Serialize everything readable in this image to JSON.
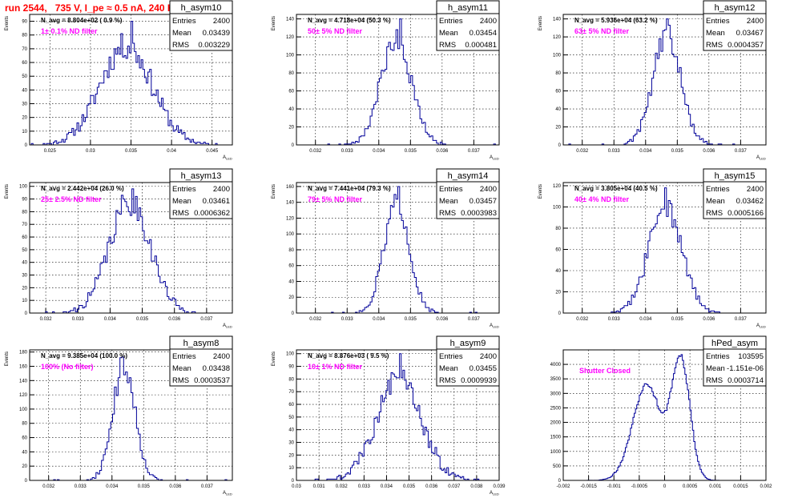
{
  "run_title": "run 2544,   735 V, I_pe ≈ 0.5 nA, 240 Hz",
  "stats_labels": {
    "entries": "Entries",
    "mean": "Mean",
    "rms": "RMS"
  },
  "chart_data": [
    {
      "type": "histogram",
      "name": "h_asym10",
      "navg": "N_avg = 8.804e+02 ( 0.9 %)",
      "annotation": "1± 0.1% ND filter",
      "annotation_color": "#ff00ff",
      "entries": "2400",
      "mean": "0.03439",
      "rms": "0.003229",
      "xlabel": "A_{LED}",
      "ylabel": "Events",
      "xlim": [
        0.0225,
        0.0475
      ],
      "ylim": [
        0,
        95
      ],
      "xticks": [
        "0.025",
        "0.03",
        "0.035",
        "0.04",
        "0.045"
      ],
      "xtick_values": [
        0.025,
        0.03,
        0.035,
        0.04,
        0.045
      ],
      "yticks": [
        "0",
        "10",
        "20",
        "30",
        "40",
        "50",
        "60",
        "70",
        "80",
        "90"
      ],
      "ytick_values": [
        0,
        10,
        20,
        30,
        40,
        50,
        60,
        70,
        80,
        90
      ],
      "dist": {
        "mu": 0.03439,
        "sigma": 0.003229,
        "peak": 72,
        "max": 90,
        "max_x": 0.0351,
        "bins": 120,
        "seed": 11
      }
    },
    {
      "type": "histogram",
      "name": "h_asym11",
      "navg": "N_avg = 4.718e+04 (50.3 %)",
      "annotation": "50± 5% ND filter",
      "annotation_color": "#ff00ff",
      "entries": "2400",
      "mean": "0.03454",
      "rms": "0.000481",
      "xlabel": "A_{LED}",
      "ylabel": "Events",
      "xlim": [
        0.0314,
        0.0378
      ],
      "ylim": [
        0,
        145
      ],
      "xticks": [
        "0.032",
        "0.033",
        "0.034",
        "0.035",
        "0.036",
        "0.037"
      ],
      "xtick_values": [
        0.032,
        0.033,
        0.034,
        0.035,
        0.036,
        0.037
      ],
      "yticks": [
        "0",
        "20",
        "40",
        "60",
        "80",
        "100",
        "120",
        "140"
      ],
      "ytick_values": [
        0,
        20,
        40,
        60,
        80,
        100,
        120,
        140
      ],
      "dist": {
        "mu": 0.03454,
        "sigma": 0.000481,
        "peak": 118,
        "max": 140,
        "max_x": 0.0347,
        "bins": 110,
        "seed": 21
      }
    },
    {
      "type": "histogram",
      "name": "h_asym12",
      "navg": "N_avg = 5.936e+04 (63.2 %)",
      "annotation": "63± 5% ND filter",
      "annotation_color": "#ff00ff",
      "entries": "2400",
      "mean": "0.03467",
      "rms": "0.0004357",
      "xlabel": "A_{LED}",
      "ylabel": "Events",
      "xlim": [
        0.0314,
        0.0378
      ],
      "ylim": [
        0,
        145
      ],
      "xticks": [
        "0.032",
        "0.033",
        "0.034",
        "0.035",
        "0.036",
        "0.037"
      ],
      "xtick_values": [
        0.032,
        0.033,
        0.034,
        0.035,
        0.036,
        0.037
      ],
      "yticks": [
        "0",
        "20",
        "40",
        "60",
        "80",
        "100",
        "120",
        "140"
      ],
      "ytick_values": [
        0,
        20,
        40,
        60,
        80,
        100,
        120,
        140
      ],
      "dist": {
        "mu": 0.03467,
        "sigma": 0.0004357,
        "peak": 122,
        "max": 140,
        "max_x": 0.0347,
        "bins": 110,
        "seed": 31
      }
    },
    {
      "type": "histogram",
      "name": "h_asym13",
      "navg": "N_avg = 2.442e+04 (26.0 %)",
      "annotation": "25± 2.5% ND filter",
      "annotation_color": "#ff00ff",
      "entries": "2400",
      "mean": "0.03461",
      "rms": "0.0006362",
      "xlabel": "A_{LED}",
      "ylabel": "Events",
      "xlim": [
        0.0315,
        0.0378
      ],
      "ylim": [
        0,
        103
      ],
      "xticks": [
        "0.032",
        "0.033",
        "0.034",
        "0.035",
        "0.036",
        "0.037"
      ],
      "xtick_values": [
        0.032,
        0.033,
        0.034,
        0.035,
        0.036,
        0.037
      ],
      "yticks": [
        "0",
        "10",
        "20",
        "30",
        "40",
        "50",
        "60",
        "70",
        "80",
        "90",
        "100"
      ],
      "ytick_values": [
        0,
        10,
        20,
        30,
        40,
        50,
        60,
        70,
        80,
        90,
        100
      ],
      "dist": {
        "mu": 0.03461,
        "sigma": 0.0006362,
        "peak": 88,
        "max": 98,
        "max_x": 0.0347,
        "bins": 115,
        "seed": 41
      }
    },
    {
      "type": "histogram",
      "name": "h_asym14",
      "navg": "N_avg = 7.441e+04 (79.3 %)",
      "annotation": "79± 5% ND filter",
      "annotation_color": "#ff00ff",
      "entries": "2400",
      "mean": "0.03457",
      "rms": "0.0003983",
      "xlabel": "A_{LED}",
      "ylabel": "Events",
      "xlim": [
        0.0314,
        0.0378
      ],
      "ylim": [
        0,
        165
      ],
      "xticks": [
        "0.032",
        "0.033",
        "0.034",
        "0.035",
        "0.036",
        "0.037"
      ],
      "xtick_values": [
        0.032,
        0.033,
        0.034,
        0.035,
        0.036,
        0.037
      ],
      "yticks": [
        "0",
        "20",
        "40",
        "60",
        "80",
        "100",
        "120",
        "140",
        "160"
      ],
      "ytick_values": [
        0,
        20,
        40,
        60,
        80,
        100,
        120,
        140,
        160
      ],
      "dist": {
        "mu": 0.03457,
        "sigma": 0.0003983,
        "peak": 140,
        "max": 160,
        "max_x": 0.0346,
        "bins": 110,
        "seed": 51
      }
    },
    {
      "type": "histogram",
      "name": "h_asym15",
      "navg": "N_avg = 3.805e+04 (40.5 %)",
      "annotation": "40± 4% ND filter",
      "annotation_color": "#ff00ff",
      "entries": "2400",
      "mean": "0.03462",
      "rms": "0.0005166",
      "xlabel": "A_{LED}",
      "ylabel": "Events",
      "xlim": [
        0.0314,
        0.0378
      ],
      "ylim": [
        0,
        123
      ],
      "xticks": [
        "0.032",
        "0.033",
        "0.034",
        "0.035",
        "0.036",
        "0.037"
      ],
      "xtick_values": [
        0.032,
        0.033,
        0.034,
        0.035,
        0.036,
        0.037
      ],
      "yticks": [
        "0",
        "20",
        "40",
        "60",
        "80",
        "100",
        "120"
      ],
      "ytick_values": [
        0,
        20,
        40,
        60,
        80,
        100,
        120
      ],
      "dist": {
        "mu": 0.03462,
        "sigma": 0.0005166,
        "peak": 102,
        "max": 118,
        "max_x": 0.0346,
        "bins": 110,
        "seed": 61
      }
    },
    {
      "type": "histogram",
      "name": "h_asym8",
      "navg": "N_avg = 9.385e+04 (100.0 %)",
      "annotation": "100% (No filter)",
      "annotation_color": "#ff00ff",
      "entries": "2400",
      "mean": "0.03438",
      "rms": "0.0003537",
      "xlabel": "A_{LED}",
      "ylabel": "Events",
      "xlim": [
        0.0314,
        0.0378
      ],
      "ylim": [
        0,
        183
      ],
      "xticks": [
        "0.032",
        "0.033",
        "0.034",
        "0.035",
        "0.036",
        "0.037"
      ],
      "xtick_values": [
        0.032,
        0.033,
        0.034,
        0.035,
        0.036,
        0.037
      ],
      "yticks": [
        "0",
        "20",
        "40",
        "60",
        "80",
        "100",
        "120",
        "140",
        "160",
        "180"
      ],
      "ytick_values": [
        0,
        20,
        40,
        60,
        80,
        100,
        120,
        140,
        160,
        180
      ],
      "dist": {
        "mu": 0.03438,
        "sigma": 0.0003537,
        "peak": 160,
        "max": 172,
        "max_x": 0.0343,
        "bins": 110,
        "seed": 71
      }
    },
    {
      "type": "histogram",
      "name": "h_asym9",
      "navg": "N_avg = 8.876e+03 ( 9.5 %)",
      "annotation": "10± 1% ND filter",
      "annotation_color": "#ff00ff",
      "entries": "2400",
      "mean": "0.03455",
      "rms": "0.0009939",
      "xlabel": "A_{LED}",
      "ylabel": "Events",
      "xlim": [
        0.03,
        0.039
      ],
      "ylim": [
        0,
        103
      ],
      "xticks": [
        "0.03",
        "0.031",
        "0.032",
        "0.033",
        "0.034",
        "0.035",
        "0.036",
        "0.037",
        "0.038",
        "0.039"
      ],
      "xtick_values": [
        0.03,
        0.031,
        0.032,
        0.033,
        0.034,
        0.035,
        0.036,
        0.037,
        0.038,
        0.039
      ],
      "yticks": [
        "0",
        "10",
        "20",
        "30",
        "40",
        "50",
        "60",
        "70",
        "80",
        "90",
        "100"
      ],
      "ytick_values": [
        0,
        10,
        20,
        30,
        40,
        50,
        60,
        70,
        80,
        90,
        100
      ],
      "dist": {
        "mu": 0.03455,
        "sigma": 0.0009939,
        "peak": 80,
        "max": 100,
        "max_x": 0.0346,
        "bins": 120,
        "seed": 81
      }
    },
    {
      "type": "histogram",
      "name": "hPed_asym",
      "navg": "",
      "annotation": "Shutter Closed",
      "annotation_color": "#ff00ff",
      "entries": "103595",
      "mean": "-1.151e-06",
      "rms": "0.0003714",
      "xlabel": "",
      "ylabel": "",
      "xlim": [
        -0.002,
        0.002
      ],
      "ylim": [
        0,
        4500
      ],
      "xticks": [
        "-0.002",
        "-0.0015",
        "-0.001",
        "-0.0005",
        "0",
        "0.0005",
        "0.001",
        "0.0015",
        "0.002"
      ],
      "xtick_values": [
        -0.002,
        -0.0015,
        -0.001,
        -0.0005,
        0,
        0.0005,
        0.001,
        0.0015,
        0.002
      ],
      "yticks": [
        "0",
        "500",
        "1000",
        "1500",
        "2000",
        "2500",
        "3000",
        "3500",
        "4000"
      ],
      "ytick_values": [
        0,
        500,
        1000,
        1500,
        2000,
        2500,
        3000,
        3500,
        4000
      ],
      "dist": {
        "bimodal": true,
        "mu1": -0.00035,
        "s1": 0.00028,
        "a1": 3300,
        "mu2": 0.00032,
        "s2": 0.00018,
        "a2": 4150,
        "bins": 160,
        "seed": 91
      }
    }
  ]
}
